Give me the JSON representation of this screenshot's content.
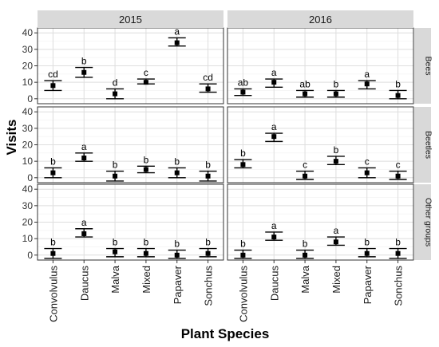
{
  "chart_data": {
    "type": "scatter",
    "xlabel": "Plant Species",
    "ylabel": "Visits",
    "ylim": [
      -3,
      43
    ],
    "yticks": [
      0,
      10,
      20,
      30,
      40
    ],
    "categories": [
      "Convolvulus",
      "Daucus",
      "Malva",
      "Mixed",
      "Papaver",
      "Sonchus"
    ],
    "grid": true,
    "columns": [
      "2015",
      "2016"
    ],
    "rows": [
      "Bees",
      "Beetles",
      "Other groups"
    ],
    "panels": [
      {
        "year": "2015",
        "group": "Bees",
        "mean": [
          8,
          16,
          3,
          10,
          34,
          6
        ],
        "lower": [
          5,
          13,
          0,
          9,
          32,
          4
        ],
        "upper": [
          11,
          19,
          6,
          12,
          37,
          9
        ],
        "labels": [
          "cd",
          "b",
          "d",
          "c",
          "a",
          "cd"
        ]
      },
      {
        "year": "2016",
        "group": "Bees",
        "mean": [
          4,
          10,
          3,
          3,
          9,
          2
        ],
        "lower": [
          2,
          7,
          1,
          1,
          6,
          0
        ],
        "upper": [
          6,
          12,
          5,
          5,
          11,
          5
        ],
        "labels": [
          "ab",
          "a",
          "ab",
          "b",
          "a",
          "b"
        ]
      },
      {
        "year": "2015",
        "group": "Beetles",
        "mean": [
          3,
          12,
          1,
          5,
          3,
          1
        ],
        "lower": [
          0,
          10,
          -2,
          3,
          0,
          -2
        ],
        "upper": [
          6,
          15,
          4,
          7,
          6,
          4
        ],
        "labels": [
          "b",
          "a",
          "b",
          "b",
          "b",
          "b"
        ]
      },
      {
        "year": "2016",
        "group": "Beetles",
        "mean": [
          8,
          25,
          1,
          10,
          3,
          1
        ],
        "lower": [
          6,
          22,
          -1,
          8,
          0,
          -1
        ],
        "upper": [
          11,
          27,
          4,
          13,
          6,
          4
        ],
        "labels": [
          "b",
          "a",
          "c",
          "b",
          "c",
          "c"
        ]
      },
      {
        "year": "2015",
        "group": "Other groups",
        "mean": [
          1,
          13,
          2,
          1,
          0,
          1
        ],
        "lower": [
          -2,
          11,
          -1,
          -1,
          -2,
          -1
        ],
        "upper": [
          4,
          16,
          4,
          4,
          3,
          4
        ],
        "labels": [
          "b",
          "a",
          "b",
          "b",
          "b",
          "b"
        ]
      },
      {
        "year": "2016",
        "group": "Other groups",
        "mean": [
          0,
          11,
          0,
          8,
          1,
          1
        ],
        "lower": [
          -2,
          9,
          -2,
          6,
          -1,
          -2
        ],
        "upper": [
          3,
          14,
          3,
          11,
          4,
          4
        ],
        "labels": [
          "b",
          "a",
          "b",
          "a",
          "b",
          "b"
        ]
      }
    ]
  },
  "colors": {
    "panel_background": "#ffffff",
    "panel_border": "#333333",
    "grid_major": "#dedede",
    "grid_minor": "#f0f0f0",
    "strip_background": "#d9d9d9",
    "mark": "#000000"
  }
}
